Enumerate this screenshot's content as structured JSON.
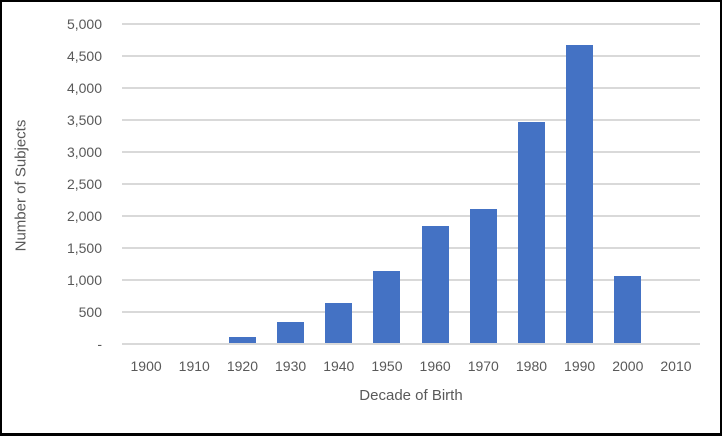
{
  "chart_data": {
    "type": "bar",
    "title": "",
    "xlabel": "Decade of Birth",
    "ylabel": "Number of Subjects",
    "categories": [
      "1900",
      "1910",
      "1920",
      "1930",
      "1940",
      "1950",
      "1960",
      "1970",
      "1980",
      "1990",
      "2000",
      "2010"
    ],
    "values": [
      0,
      0,
      100,
      330,
      620,
      1120,
      1830,
      2090,
      3450,
      4650,
      1040,
      0
    ],
    "ylim": [
      0,
      5000
    ],
    "ytick_step": 500,
    "ytick_labels_top_to_bottom": [
      "5,000",
      "4,500",
      "4,000",
      "3,500",
      "3,000",
      "2,500",
      "2,000",
      "1,500",
      "1,000",
      "500",
      "-"
    ],
    "grid": true,
    "legend": false,
    "colors": {
      "bar": "#4472C4",
      "gridline": "#d9d9d9",
      "text": "#595959",
      "background": "#ffffff",
      "frame_border": "#000000"
    }
  }
}
